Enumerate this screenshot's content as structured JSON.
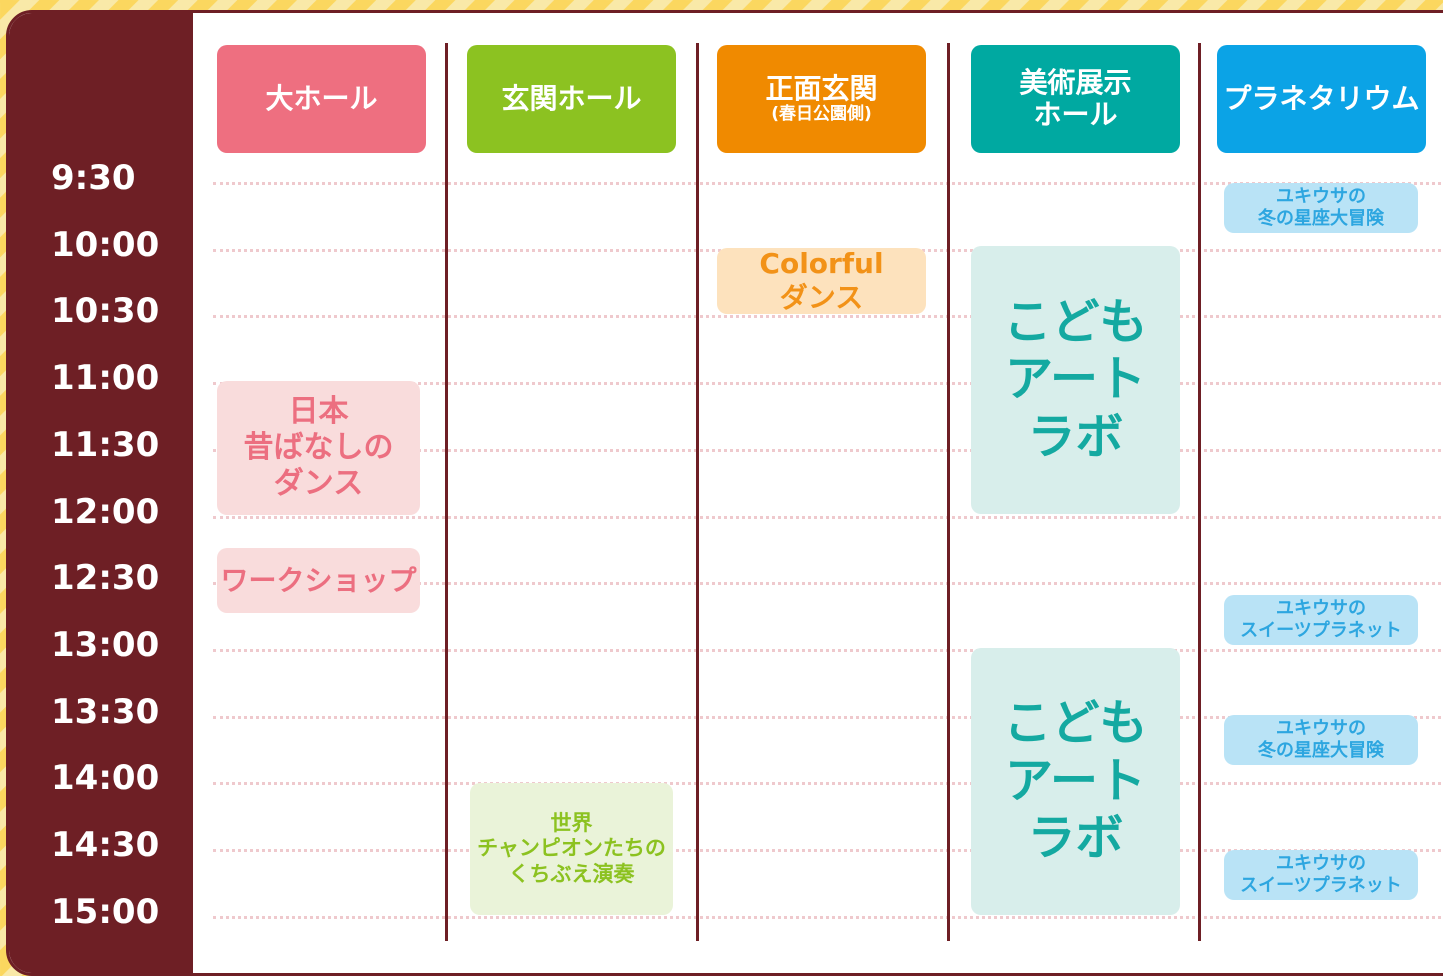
{
  "times": [
    "9:30",
    "10:00",
    "10:30",
    "11:00",
    "11:30",
    "12:00",
    "12:30",
    "13:00",
    "13:30",
    "14:00",
    "14:30",
    "15:00"
  ],
  "columns": [
    {
      "header": {
        "title": [
          "大ホール"
        ]
      },
      "events": [
        {
          "lines": [
            "日本",
            "昔ばなしの",
            "ダンス"
          ]
        },
        {
          "lines": [
            "ワークショップ"
          ]
        }
      ]
    },
    {
      "header": {
        "title": [
          "玄関ホール"
        ]
      },
      "events": [
        {
          "lines": [
            "世界",
            "チャンピオンたちの",
            "くちぶえ演奏"
          ]
        }
      ]
    },
    {
      "header": {
        "title": [
          "正面玄関"
        ],
        "subtitle": "(春日公園側)"
      },
      "events": [
        {
          "lines": [
            "Colorful",
            "ダンス"
          ]
        }
      ]
    },
    {
      "header": {
        "title": [
          "美術展示",
          "ホール"
        ]
      },
      "events": [
        {
          "lines": [
            "こども",
            "アート",
            "ラボ"
          ]
        },
        {
          "lines": [
            "こども",
            "アート",
            "ラボ"
          ]
        }
      ]
    },
    {
      "header": {
        "title": [
          "プラネタリウム"
        ]
      },
      "events": [
        {
          "lines": [
            "ユキウサの",
            "冬の星座大冒険"
          ]
        },
        {
          "lines": [
            "ユキウサの",
            "スイーツプラネット"
          ]
        },
        {
          "lines": [
            "ユキウサの",
            "冬の星座大冒険"
          ]
        },
        {
          "lines": [
            "ユキウサの",
            "スイーツプラネット"
          ]
        }
      ]
    }
  ]
}
